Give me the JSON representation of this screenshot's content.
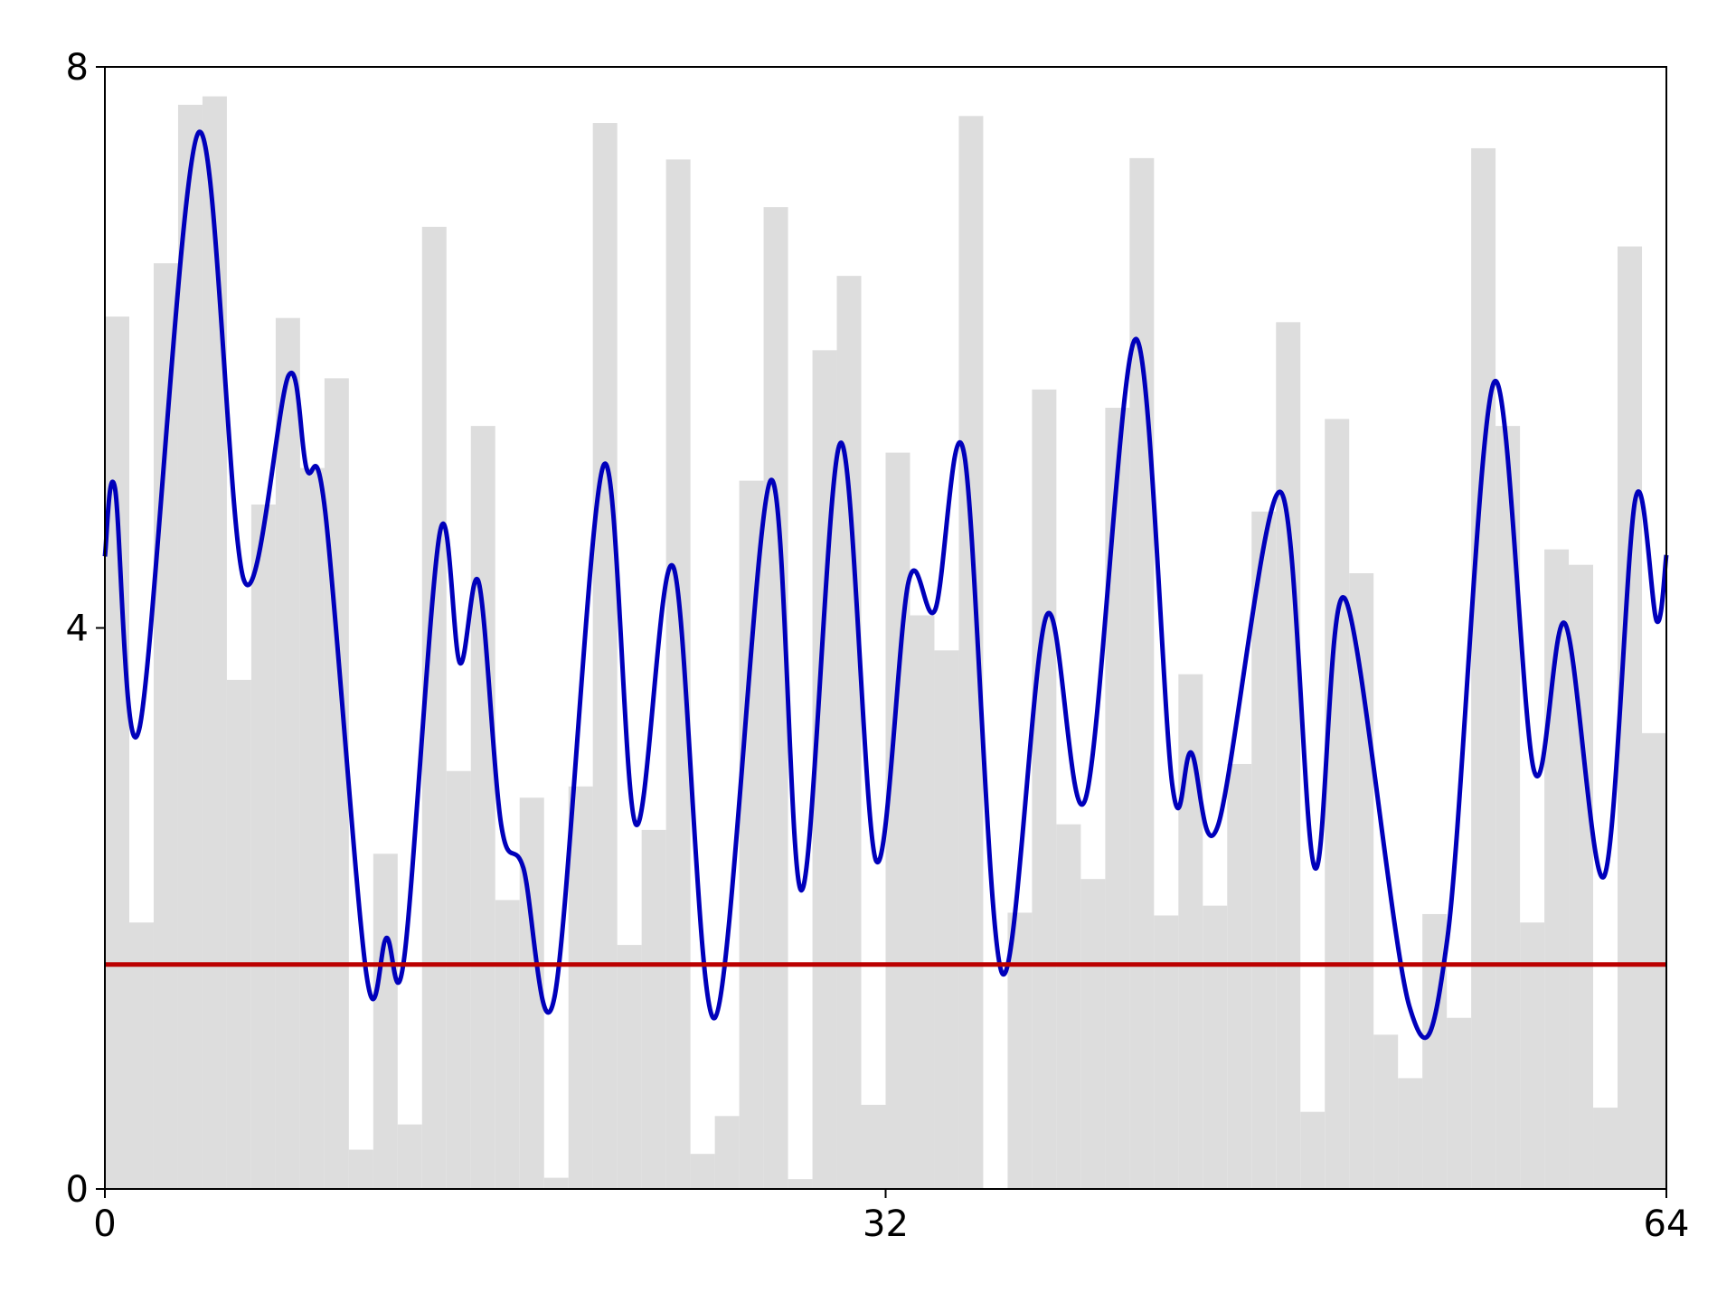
{
  "chart_data": {
    "type": "histogram",
    "bins": [
      0,
      1,
      2,
      3,
      4,
      5,
      6,
      7,
      8,
      9,
      10,
      11,
      12,
      13,
      14,
      15,
      16,
      17,
      18,
      19,
      20,
      21,
      22,
      23,
      24,
      25,
      26,
      27,
      28,
      29,
      30,
      31,
      32,
      33,
      34,
      35,
      36,
      37,
      38,
      39,
      40,
      41,
      42,
      43,
      44,
      45,
      46,
      47,
      48,
      49,
      50,
      51,
      52,
      53,
      54,
      55,
      56,
      57,
      58,
      59,
      60,
      61,
      62,
      63,
      64
    ],
    "values": [
      6.22,
      1.9,
      6.6,
      7.73,
      7.79,
      3.63,
      4.88,
      6.21,
      5.14,
      5.78,
      0.28,
      2.39,
      0.46,
      6.86,
      2.98,
      5.44,
      2.06,
      2.79,
      0.08,
      2.87,
      7.6,
      1.74,
      2.56,
      7.34,
      0.25,
      0.52,
      5.05,
      7.0,
      0.07,
      5.98,
      6.51,
      0.6,
      5.25,
      4.09,
      3.84,
      7.65,
      0,
      1.97,
      5.7,
      2.6,
      2.21,
      5.57,
      7.35,
      1.95,
      3.67,
      2.02,
      3.03,
      4.83,
      6.18,
      0.55,
      5.49,
      4.39,
      1.1,
      0.79,
      1.96,
      1.22,
      7.42,
      5.44,
      1.9,
      4.56,
      4.45,
      0.58,
      6.72,
      3.25
    ],
    "color": "#dddddd",
    "series": [
      {
        "color": "#0000bb",
        "x": [
          0,
          0.41,
          1.41,
          3.83,
          5.7,
          7.53,
          8.26,
          9.03,
          10.72,
          11.54,
          12.27,
          13.73,
          14.55,
          15.33,
          16.24,
          17.15,
          18.43,
          20.44,
          21.76,
          23.31,
          25.0,
          27.28,
          28.56,
          30.16,
          31.61,
          32.94,
          34.03,
          35.22,
          36.77,
          38.6,
          40.19,
          42.25,
          43.75,
          44.53,
          45.62,
          48.18,
          49.59,
          50.82,
          53.47,
          55.02,
          56.93,
          58.58,
          59.85,
          61.45,
          62.73,
          63.6,
          64
        ],
        "values": [
          4.51,
          5.0,
          3.28,
          7.53,
          4.34,
          5.8,
          5.14,
          4.83,
          1.53,
          1.79,
          1.65,
          4.68,
          3.75,
          4.32,
          2.6,
          2.29,
          1.37,
          5.16,
          2.6,
          4.43,
          1.22,
          5.05,
          2.13,
          5.32,
          2.34,
          4.33,
          4.13,
          5.24,
          1.54,
          4.09,
          2.78,
          6.06,
          2.88,
          3.11,
          2.59,
          4.97,
          2.29,
          4.21,
          1.3,
          1.78,
          5.75,
          2.98,
          4.03,
          2.23,
          4.92,
          4.05,
          4.52
        ]
      },
      {
        "color": "#bb0000",
        "x": [
          0,
          64
        ],
        "values": [
          1.6,
          1.6
        ]
      }
    ],
    "xlim": [
      0,
      64
    ],
    "xticks": [
      0,
      32,
      64
    ],
    "ylim": [
      0,
      8
    ],
    "yticks": [
      0,
      4,
      8
    ]
  }
}
